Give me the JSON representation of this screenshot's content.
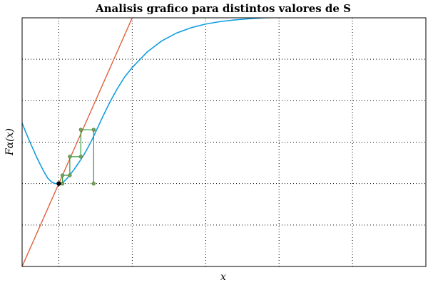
{
  "chart_data": {
    "type": "line",
    "title": "Analisis grafico para distintos valores de S",
    "xlabel": "x",
    "ylabel": "F_α(x)",
    "ylabel_display": "Fα(x)",
    "grid": true,
    "xlim": [
      0,
      11
    ],
    "ylim": [
      0,
      6
    ],
    "xgrid": [
      1,
      3,
      5,
      7,
      9
    ],
    "ygrid": [
      1,
      2,
      3,
      4,
      5
    ],
    "colors": {
      "curve": "#129ee0",
      "identity": "#e0603a",
      "cobweb": "#2e9b3b",
      "point": "#78a05a",
      "fixed_point": "#000000"
    },
    "series": [
      {
        "kind": "curve",
        "points": [
          [
            0,
            3.46
          ],
          [
            0.1,
            3.24
          ],
          [
            0.2,
            3.03
          ],
          [
            0.3,
            2.83
          ],
          [
            0.4,
            2.63
          ],
          [
            0.5,
            2.45
          ],
          [
            0.6,
            2.28
          ],
          [
            0.7,
            2.13
          ],
          [
            0.8,
            2.04
          ],
          [
            0.9,
            2.0
          ],
          [
            1.0,
            2.0
          ],
          [
            1.1,
            2.02
          ],
          [
            1.2,
            2.1
          ],
          [
            1.3,
            2.21
          ],
          [
            1.4,
            2.32
          ],
          [
            1.5,
            2.45
          ],
          [
            1.6,
            2.58
          ],
          [
            1.7,
            2.72
          ],
          [
            1.8,
            2.88
          ],
          [
            1.9,
            3.05
          ],
          [
            2.0,
            3.24
          ],
          [
            2.2,
            3.62
          ],
          [
            2.4,
            3.98
          ],
          [
            2.6,
            4.3
          ],
          [
            2.8,
            4.58
          ],
          [
            3.0,
            4.8
          ],
          [
            3.4,
            5.17
          ],
          [
            3.8,
            5.44
          ],
          [
            4.2,
            5.63
          ],
          [
            4.6,
            5.76
          ],
          [
            5.0,
            5.85
          ],
          [
            5.4,
            5.91
          ],
          [
            5.8,
            5.95
          ],
          [
            6.2,
            5.98
          ],
          [
            6.6,
            6.0
          ],
          [
            7.0,
            6.01
          ]
        ]
      },
      {
        "kind": "identity",
        "points": [
          [
            0,
            0
          ],
          [
            3.0,
            6.0
          ]
        ]
      },
      {
        "kind": "cobweb",
        "points": [
          [
            1.0,
            2.0
          ],
          [
            1.1,
            2.0
          ],
          [
            1.1,
            2.2
          ],
          [
            1.3,
            2.2
          ],
          [
            1.3,
            2.65
          ],
          [
            1.6,
            2.65
          ],
          [
            1.6,
            3.3
          ],
          [
            1.95,
            3.3
          ],
          [
            1.95,
            2.0
          ]
        ]
      }
    ],
    "markers": [
      [
        1.1,
        2.0
      ],
      [
        1.1,
        2.2
      ],
      [
        1.3,
        2.2
      ],
      [
        1.3,
        2.65
      ],
      [
        1.6,
        2.65
      ],
      [
        1.6,
        3.3
      ],
      [
        1.95,
        3.3
      ],
      [
        1.95,
        2.0
      ]
    ],
    "fixed_point": [
      1.0,
      2.0
    ]
  }
}
